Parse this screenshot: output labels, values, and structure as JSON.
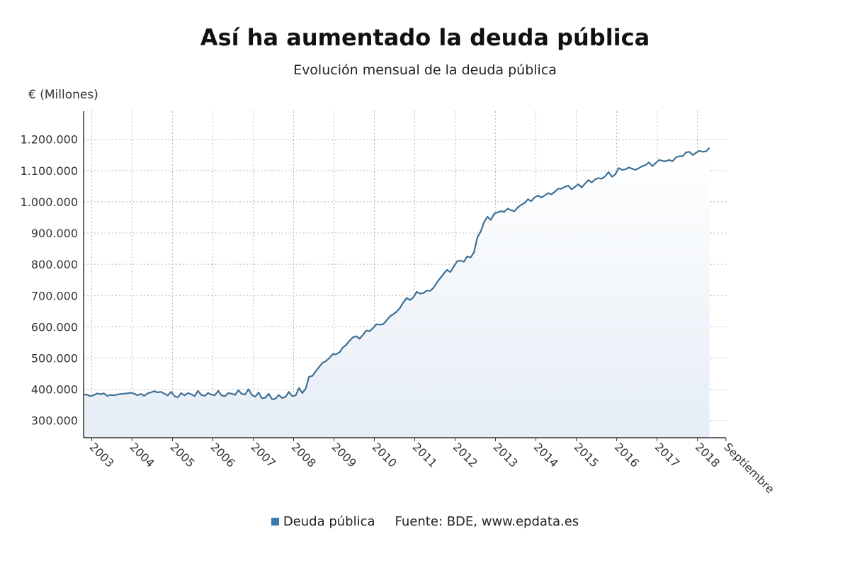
{
  "chart_data": {
    "type": "area",
    "title": "Así ha aumentado la deuda pública",
    "subtitle": "Evolución mensual de la deuda pública",
    "ylabel": "€ (Millones)",
    "xlabel": "",
    "ylim": [
      245000,
      1290000
    ],
    "yticks": [
      300000,
      400000,
      500000,
      600000,
      700000,
      800000,
      900000,
      1000000,
      1100000,
      1200000
    ],
    "ytick_labels": [
      "300.000",
      "400.000",
      "500.000",
      "600.000",
      "700.000",
      "800.000",
      "900.000",
      "1.000.000",
      "1.100.000",
      "1.200.000"
    ],
    "xlim": [
      2002.8,
      2018.708
    ],
    "xticks": [
      2003,
      2004,
      2005,
      2006,
      2007,
      2008,
      2009,
      2010,
      2011,
      2012,
      2013,
      2014,
      2015,
      2016,
      2017,
      2018,
      2018.708
    ],
    "xtick_labels": [
      "2003",
      "2004",
      "2005",
      "2006",
      "2007",
      "2008",
      "2009",
      "2010",
      "2011",
      "2012",
      "2013",
      "2014",
      "2015",
      "2016",
      "2017",
      "2018",
      "Septiembre"
    ],
    "grid": true,
    "series": [
      {
        "name": "Deuda pública",
        "color": "#3d7095",
        "x_start": 2002.8,
        "x_step_months": 1,
        "values": [
          383000,
          383000,
          378000,
          381000,
          387000,
          384000,
          387000,
          379000,
          382000,
          381000,
          383000,
          385000,
          386000,
          387000,
          389000,
          386000,
          381000,
          385000,
          379000,
          387000,
          390000,
          394000,
          390000,
          392000,
          386000,
          380000,
          392000,
          378000,
          374000,
          388000,
          380000,
          388000,
          384000,
          378000,
          395000,
          382000,
          379000,
          388000,
          383000,
          381000,
          395000,
          380000,
          378000,
          388000,
          386000,
          382000,
          397000,
          385000,
          383000,
          400000,
          382000,
          376000,
          390000,
          371000,
          373000,
          386000,
          368000,
          370000,
          382000,
          372000,
          376000,
          392000,
          378000,
          380000,
          404000,
          388000,
          402000,
          440000,
          443000,
          458000,
          472000,
          485000,
          490000,
          500000,
          512000,
          512000,
          518000,
          533000,
          542000,
          555000,
          566000,
          570000,
          562000,
          574000,
          588000,
          586000,
          596000,
          608000,
          607000,
          608000,
          620000,
          633000,
          640000,
          648000,
          660000,
          678000,
          692000,
          686000,
          694000,
          712000,
          706000,
          708000,
          716000,
          715000,
          725000,
          742000,
          756000,
          770000,
          782000,
          775000,
          793000,
          810000,
          812000,
          808000,
          825000,
          822000,
          838000,
          886000,
          905000,
          935000,
          952000,
          942000,
          962000,
          966000,
          970000,
          968000,
          978000,
          973000,
          970000,
          982000,
          990000,
          996000,
          1008000,
          1002000,
          1014000,
          1020000,
          1014000,
          1020000,
          1028000,
          1024000,
          1032000,
          1042000,
          1042000,
          1048000,
          1052000,
          1040000,
          1048000,
          1056000,
          1046000,
          1058000,
          1070000,
          1062000,
          1072000,
          1076000,
          1074000,
          1082000,
          1095000,
          1080000,
          1088000,
          1108000,
          1102000,
          1104000,
          1110000,
          1106000,
          1102000,
          1108000,
          1114000,
          1118000,
          1126000,
          1114000,
          1124000,
          1134000,
          1131000,
          1130000,
          1134000,
          1130000,
          1142000,
          1146000,
          1146000,
          1158000,
          1160000,
          1150000,
          1157000,
          1163000,
          1160000,
          1162000,
          1173000
        ]
      }
    ],
    "legend": {
      "position": "bottom-center",
      "entries": [
        "Deuda pública"
      ]
    }
  },
  "legend_label": "Deuda pública",
  "source": "Fuente: BDE, www.epdata.es"
}
